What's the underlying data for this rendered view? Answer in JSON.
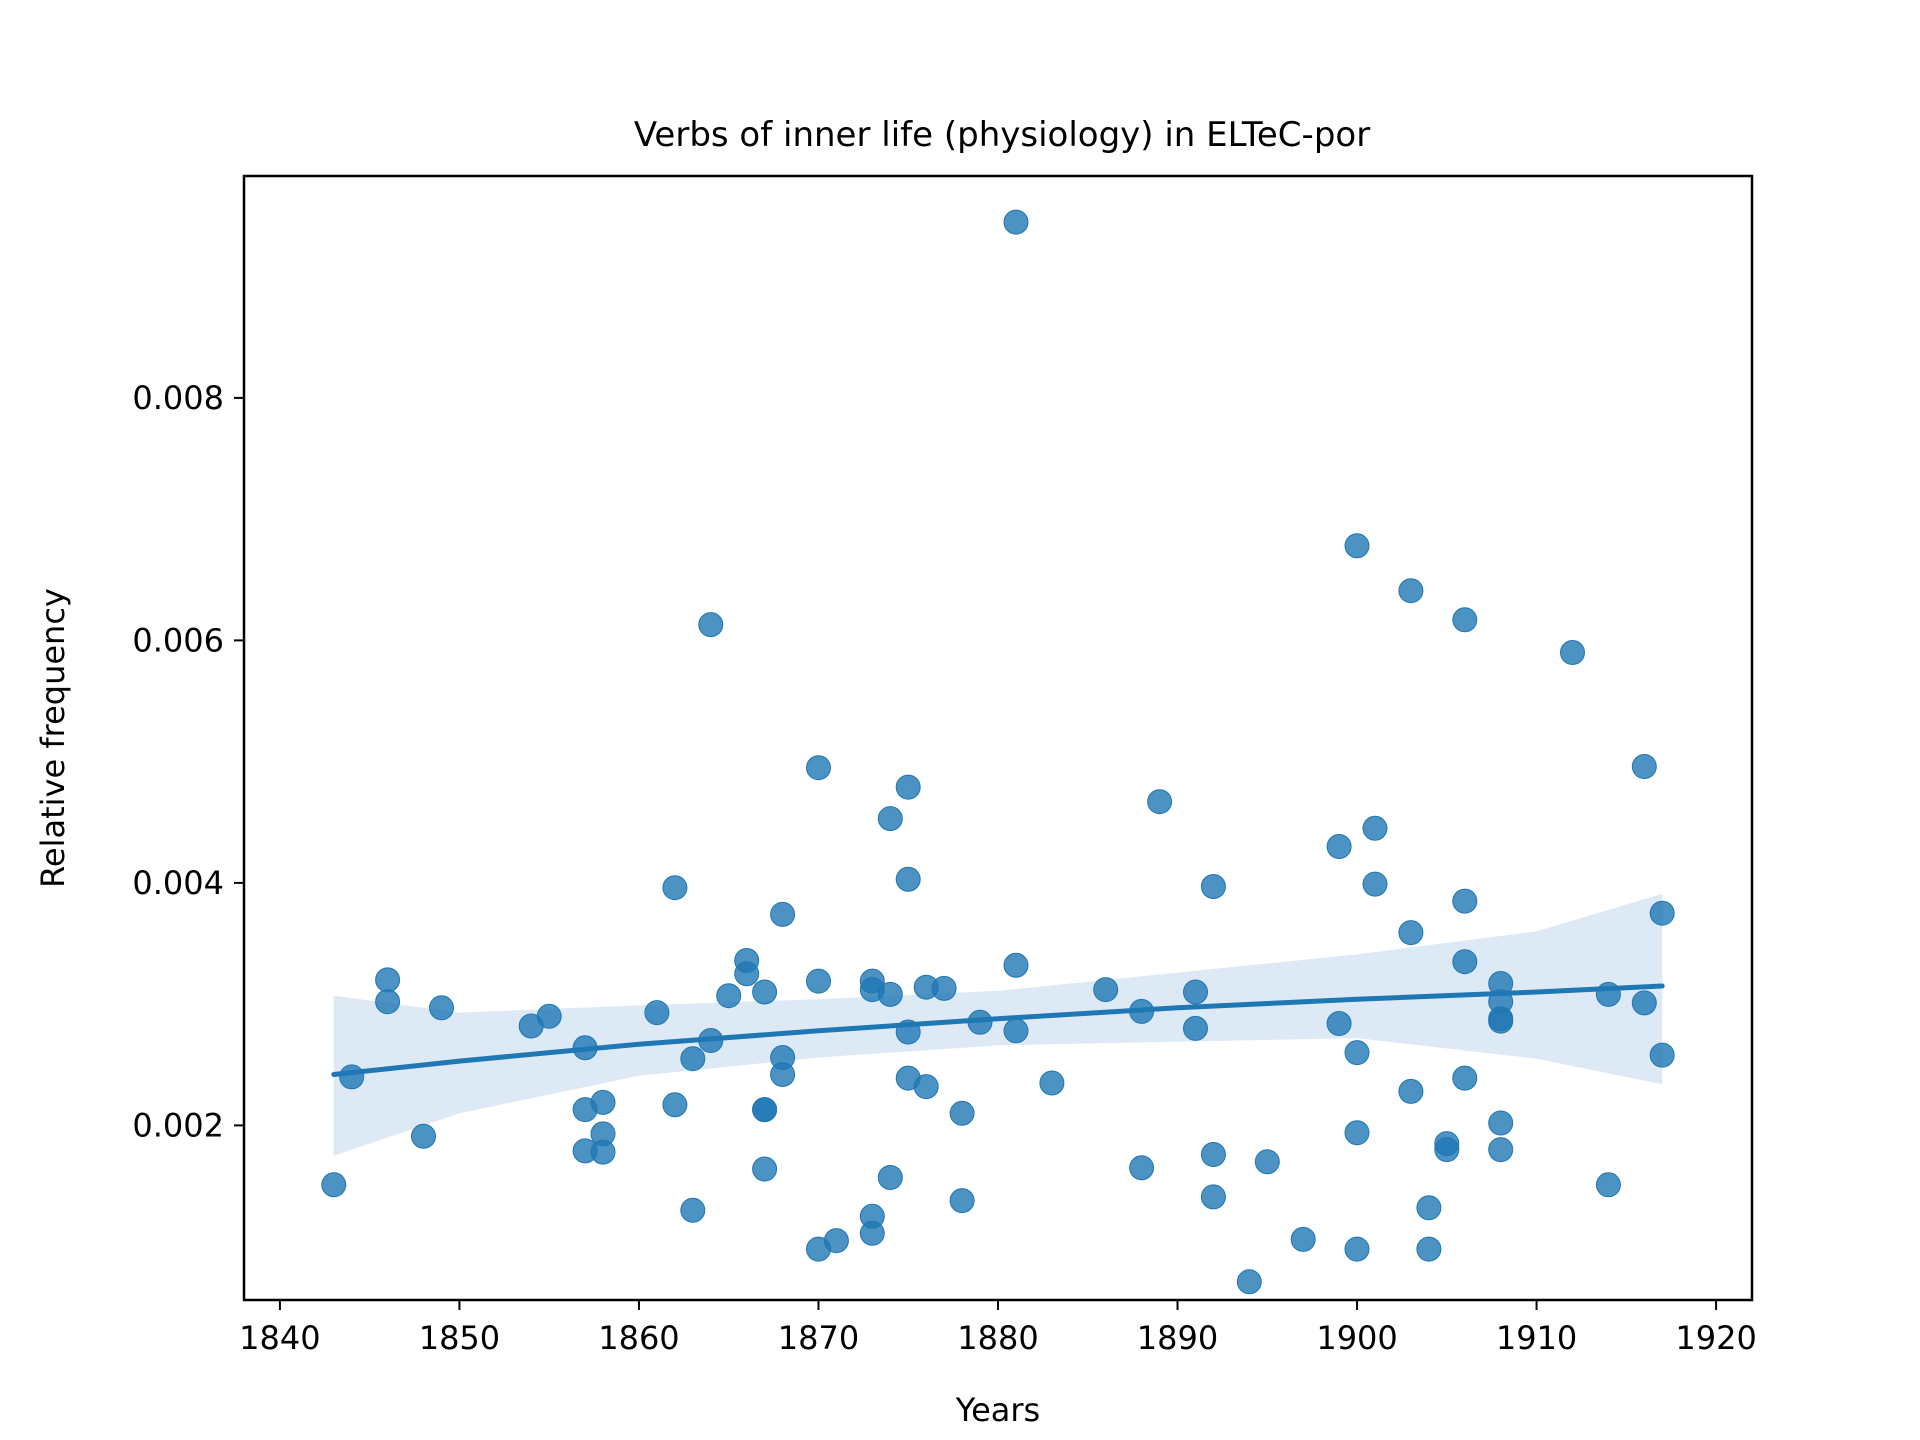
{
  "chart_data": {
    "type": "scatter",
    "title": "Verbs of inner life (physiology) in ELTeC-por",
    "xlabel": "Years",
    "ylabel": "Relative frequency",
    "xlim": [
      1838,
      1922
    ],
    "ylim": [
      0.00056,
      0.00983
    ],
    "xticks": [
      1840,
      1850,
      1860,
      1870,
      1880,
      1890,
      1900,
      1910,
      1920
    ],
    "yticks": [
      0.002,
      0.004,
      0.006,
      0.008
    ],
    "xtick_labels": [
      "1840",
      "1850",
      "1860",
      "1870",
      "1880",
      "1890",
      "1900",
      "1910",
      "1920"
    ],
    "ytick_labels": [
      "0.002",
      "0.004",
      "0.006",
      "0.008"
    ],
    "grid": false,
    "legend": "none",
    "colors": {
      "points": "#1f77b4",
      "line": "#1f77b4",
      "band": "#c6dbef"
    },
    "points": {
      "x": [
        1843,
        1844,
        1846,
        1846,
        1848,
        1849,
        1854,
        1855,
        1857,
        1857,
        1857,
        1858,
        1858,
        1858,
        1861,
        1862,
        1862,
        1863,
        1863,
        1864,
        1864,
        1865,
        1866,
        1866,
        1867,
        1867,
        1867,
        1867,
        1868,
        1868,
        1868,
        1870,
        1870,
        1870,
        1871,
        1873,
        1873,
        1873,
        1873,
        1874,
        1874,
        1874,
        1875,
        1875,
        1875,
        1875,
        1876,
        1876,
        1877,
        1878,
        1878,
        1879,
        1881,
        1881,
        1881,
        1883,
        1886,
        1888,
        1888,
        1889,
        1891,
        1891,
        1892,
        1892,
        1892,
        1894,
        1895,
        1897,
        1899,
        1899,
        1900,
        1900,
        1900,
        1900,
        1901,
        1901,
        1903,
        1903,
        1903,
        1904,
        1904,
        1905,
        1905,
        1906,
        1906,
        1906,
        1906,
        1908,
        1908,
        1908,
        1908,
        1908,
        1908,
        1912,
        1914,
        1914,
        1916,
        1916,
        1917,
        1917
      ],
      "y": [
        0.00151,
        0.0024,
        0.0032,
        0.00302,
        0.00191,
        0.00297,
        0.00282,
        0.0029,
        0.00264,
        0.00213,
        0.00179,
        0.00219,
        0.00193,
        0.00178,
        0.00293,
        0.00396,
        0.00217,
        0.00255,
        0.0013,
        0.00613,
        0.0027,
        0.00307,
        0.00336,
        0.00325,
        0.00213,
        0.00213,
        0.0031,
        0.00164,
        0.00256,
        0.00242,
        0.00374,
        0.00495,
        0.00319,
        0.00098,
        0.00105,
        0.00125,
        0.00111,
        0.00319,
        0.00312,
        0.00453,
        0.00308,
        0.00157,
        0.00479,
        0.00403,
        0.00277,
        0.00239,
        0.00314,
        0.00232,
        0.00313,
        0.0021,
        0.00138,
        0.00285,
        0.00945,
        0.00332,
        0.00278,
        0.00235,
        0.00312,
        0.00294,
        0.00165,
        0.00467,
        0.0031,
        0.0028,
        0.00397,
        0.00176,
        0.00141,
        0.00071,
        0.0017,
        0.00106,
        0.0043,
        0.00284,
        0.00678,
        0.0026,
        0.00194,
        0.00098,
        0.00445,
        0.00399,
        0.00641,
        0.00359,
        0.00228,
        0.00132,
        0.00098,
        0.00185,
        0.0018,
        0.00617,
        0.00385,
        0.00335,
        0.00239,
        0.00317,
        0.00302,
        0.00288,
        0.00286,
        0.00202,
        0.0018,
        0.0059,
        0.00308,
        0.00151,
        0.00496,
        0.00301,
        0.00375,
        0.00258
      ]
    },
    "trend": {
      "x": [
        1843,
        1850,
        1860,
        1870,
        1880,
        1890,
        1900,
        1910,
        1917
      ],
      "y": [
        0.00242,
        0.00253,
        0.00267,
        0.00278,
        0.00288,
        0.00297,
        0.00304,
        0.0031,
        0.00315
      ],
      "ci_lower": [
        0.00175,
        0.0021,
        0.00241,
        0.00256,
        0.00266,
        0.00269,
        0.00272,
        0.00255,
        0.00234
      ],
      "ci_upper": [
        0.00307,
        0.00293,
        0.00299,
        0.00304,
        0.00311,
        0.00326,
        0.00341,
        0.0036,
        0.00391
      ]
    }
  }
}
